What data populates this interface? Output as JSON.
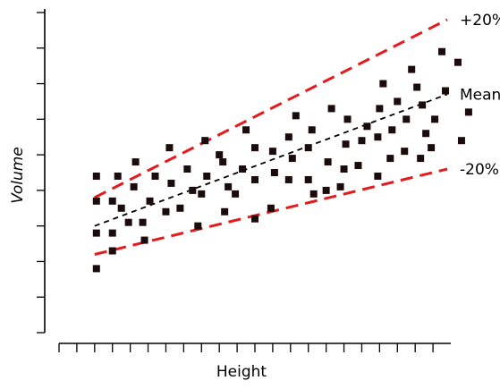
{
  "chart_data": {
    "type": "scatter",
    "title": "",
    "xlabel": "Height",
    "ylabel": "Volume",
    "xlim": [
      0,
      22
    ],
    "ylim": [
      0,
      9
    ],
    "x_ticks": [
      0,
      1,
      2,
      3,
      4,
      5,
      6,
      7,
      8,
      9,
      10,
      11,
      12,
      13,
      14,
      15,
      16,
      17,
      18,
      19,
      20,
      21
    ],
    "y_ticks": [
      0,
      1,
      2,
      3,
      4,
      5,
      6,
      7,
      8,
      9
    ],
    "grid": false,
    "legend": "none",
    "points": [
      [
        2.1,
        1.8
      ],
      [
        2.1,
        2.8
      ],
      [
        2.1,
        3.7
      ],
      [
        2.1,
        4.4
      ],
      [
        3.0,
        2.3
      ],
      [
        3.0,
        2.8
      ],
      [
        3.0,
        3.7
      ],
      [
        3.3,
        4.4
      ],
      [
        3.5,
        3.5
      ],
      [
        3.9,
        3.1
      ],
      [
        4.2,
        4.1
      ],
      [
        4.3,
        4.8
      ],
      [
        4.8,
        2.6
      ],
      [
        4.7,
        3.1
      ],
      [
        5.1,
        3.7
      ],
      [
        5.4,
        4.4
      ],
      [
        6.0,
        3.4
      ],
      [
        6.3,
        4.2
      ],
      [
        6.2,
        5.2
      ],
      [
        6.8,
        3.5
      ],
      [
        7.2,
        4.6
      ],
      [
        7.5,
        4.0
      ],
      [
        7.8,
        3.0
      ],
      [
        8.0,
        3.9
      ],
      [
        8.3,
        4.4
      ],
      [
        8.2,
        5.4
      ],
      [
        9.0,
        5.0
      ],
      [
        9.3,
        3.4
      ],
      [
        9.5,
        4.1
      ],
      [
        9.2,
        4.8
      ],
      [
        9.9,
        3.9
      ],
      [
        10.3,
        4.6
      ],
      [
        10.5,
        5.7
      ],
      [
        11.0,
        3.2
      ],
      [
        11.0,
        4.3
      ],
      [
        11.0,
        5.2
      ],
      [
        11.9,
        3.5
      ],
      [
        12.1,
        4.5
      ],
      [
        12.0,
        5.1
      ],
      [
        12.9,
        4.3
      ],
      [
        12.9,
        5.5
      ],
      [
        13.1,
        4.9
      ],
      [
        13.3,
        6.1
      ],
      [
        14.0,
        4.3
      ],
      [
        14.0,
        5.2
      ],
      [
        14.3,
        3.9
      ],
      [
        14.2,
        5.7
      ],
      [
        15.0,
        4.0
      ],
      [
        15.1,
        4.8
      ],
      [
        15.3,
        6.3
      ],
      [
        15.8,
        4.1
      ],
      [
        16.0,
        4.6
      ],
      [
        16.1,
        5.3
      ],
      [
        16.2,
        6.0
      ],
      [
        16.8,
        4.7
      ],
      [
        17.0,
        5.4
      ],
      [
        17.3,
        5.8
      ],
      [
        17.9,
        4.4
      ],
      [
        17.9,
        5.5
      ],
      [
        18.0,
        6.3
      ],
      [
        18.2,
        7.0
      ],
      [
        18.6,
        4.9
      ],
      [
        18.7,
        5.7
      ],
      [
        19.0,
        6.5
      ],
      [
        19.4,
        5.1
      ],
      [
        19.5,
        6.0
      ],
      [
        19.8,
        7.4
      ],
      [
        20.1,
        6.9
      ],
      [
        20.3,
        4.9
      ],
      [
        20.4,
        6.4
      ],
      [
        20.9,
        5.2
      ],
      [
        21.1,
        6.0
      ],
      [
        21.5,
        7.9
      ],
      [
        21.7,
        6.8
      ],
      [
        20.6,
        5.6
      ],
      [
        22.4,
        7.6
      ],
      [
        22.6,
        5.4
      ],
      [
        23.0,
        6.2
      ]
    ],
    "lines": [
      {
        "label": "+20%",
        "color": "#e41a1c",
        "style": "dashed",
        "from": [
          2.0,
          3.8
        ],
        "to": [
          21.8,
          8.8
        ]
      },
      {
        "label": "Mean",
        "color": "#000000",
        "style": "dashed",
        "from": [
          2.0,
          3.0
        ],
        "to": [
          21.8,
          6.7
        ]
      },
      {
        "label": "-20%",
        "color": "#e41a1c",
        "style": "dashed",
        "from": [
          2.0,
          2.2
        ],
        "to": [
          21.8,
          4.6
        ]
      }
    ],
    "marker_color": "#1a0c0c"
  }
}
